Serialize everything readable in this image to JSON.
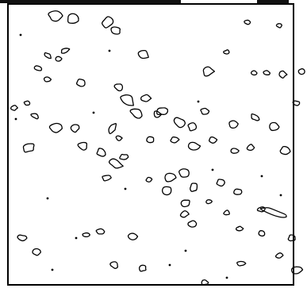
{
  "image": {
    "style": "black contour outlines on white background",
    "frame_color": "#000000",
    "background_color": "#ffffff",
    "stroke_color": "#000000"
  }
}
